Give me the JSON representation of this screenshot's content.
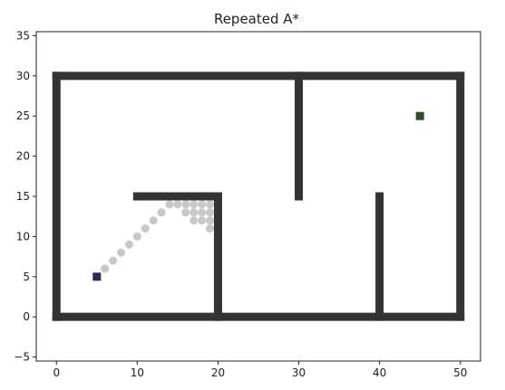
{
  "chart_data": {
    "type": "scatter",
    "title": "Repeated A*",
    "xlabel": "",
    "ylabel": "",
    "xlim": [
      -2.5,
      52.5
    ],
    "ylim": [
      -5.5,
      35.5
    ],
    "xticks": [
      0,
      10,
      20,
      30,
      40,
      50
    ],
    "yticks": [
      -5,
      0,
      5,
      10,
      15,
      20,
      25,
      30,
      35
    ],
    "grid": false,
    "colors": {
      "wall": "#333333",
      "path": "#c8c8c8",
      "start": "#2b2b55",
      "goal": "#2e4d2e"
    },
    "walls": [
      {
        "x1": 0,
        "y1": 0,
        "x2": 50,
        "y2": 0
      },
      {
        "x1": 0,
        "y1": 30,
        "x2": 50,
        "y2": 30
      },
      {
        "x1": 0,
        "y1": 0,
        "x2": 0,
        "y2": 30
      },
      {
        "x1": 50,
        "y1": 0,
        "x2": 50,
        "y2": 30
      },
      {
        "x1": 10,
        "y1": 15,
        "x2": 20,
        "y2": 15
      },
      {
        "x1": 20,
        "y1": 0,
        "x2": 20,
        "y2": 15
      },
      {
        "x1": 30,
        "y1": 15,
        "x2": 30,
        "y2": 30
      },
      {
        "x1": 40,
        "y1": 0,
        "x2": 40,
        "y2": 15
      }
    ],
    "explored": [
      [
        6,
        6
      ],
      [
        7,
        7
      ],
      [
        8,
        8
      ],
      [
        9,
        9
      ],
      [
        10,
        10
      ],
      [
        11,
        11
      ],
      [
        12,
        12
      ],
      [
        13,
        13
      ],
      [
        14,
        14
      ],
      [
        15,
        14
      ],
      [
        16,
        14
      ],
      [
        17,
        14
      ],
      [
        18,
        14
      ],
      [
        19,
        14
      ],
      [
        16,
        13
      ],
      [
        17,
        13
      ],
      [
        18,
        13
      ],
      [
        19,
        13
      ],
      [
        17,
        12
      ],
      [
        18,
        12
      ],
      [
        19,
        12
      ],
      [
        19,
        11
      ]
    ],
    "start": [
      5,
      5
    ],
    "goal": [
      45,
      25
    ]
  }
}
